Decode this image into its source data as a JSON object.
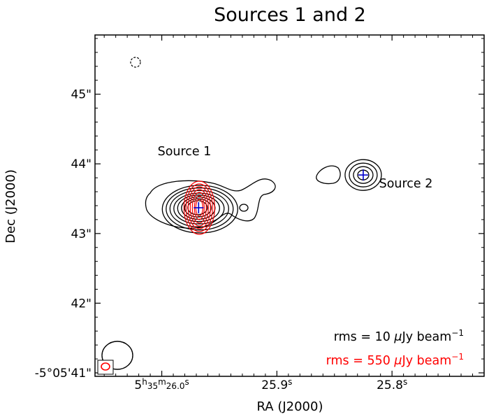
{
  "chart_data": {
    "type": "contour",
    "title": "Sources 1 and 2",
    "xlabel": "RA (J2000)",
    "ylabel": "Dec (J2000)",
    "x_unit": "seconds of RA (5h35m + s)",
    "y_unit": "arcsec below -5°05'",
    "xlim": [
      26.058,
      25.72
    ],
    "ylim": [
      45.85,
      40.95
    ],
    "x_ticks": [
      {
        "value": 26.0,
        "h": "5",
        "m": "35",
        "s": "26.0"
      },
      {
        "value": 25.9,
        "h": "",
        "m": "",
        "s": "25.9"
      },
      {
        "value": 25.8,
        "h": "",
        "m": "",
        "s": "25.8"
      }
    ],
    "y_ticks": [
      {
        "value": 41,
        "label": "-5°05'41\""
      },
      {
        "value": 42,
        "label": "42\""
      },
      {
        "value": 43,
        "label": "43\""
      },
      {
        "value": 44,
        "label": "44\""
      },
      {
        "value": 45,
        "label": "45\""
      }
    ],
    "annotations": [
      {
        "text": "Source 1",
        "ra": 25.968,
        "dec": 42.59
      },
      {
        "text": "Source 2",
        "ra": 25.775,
        "dec": 43.06
      }
    ],
    "sources": [
      {
        "name": "Source 1",
        "ra": 25.968,
        "dec": 43.37
      },
      {
        "name": "Source 2",
        "ra": 25.825,
        "dec": 43.84
      }
    ],
    "series": [
      {
        "name": "rms = 10 μJy beam⁻¹",
        "color": "#000000"
      },
      {
        "name": "rms = 550 μJy beam⁻¹",
        "color": "#ff0000"
      }
    ],
    "legend": {
      "line1_pre": "rms = 10 ",
      "line1_mu": "μ",
      "line1_post": "Jy beam",
      "line1_exp": "−1",
      "line2_pre": "rms = 550 ",
      "line2_mu": "μ",
      "line2_post": "Jy beam",
      "line2_exp": "−1",
      "placement": "bottom-right"
    },
    "colors": {
      "low_freq": "#000000",
      "high_freq": "#ff0000",
      "marker": "#0000cc"
    }
  }
}
